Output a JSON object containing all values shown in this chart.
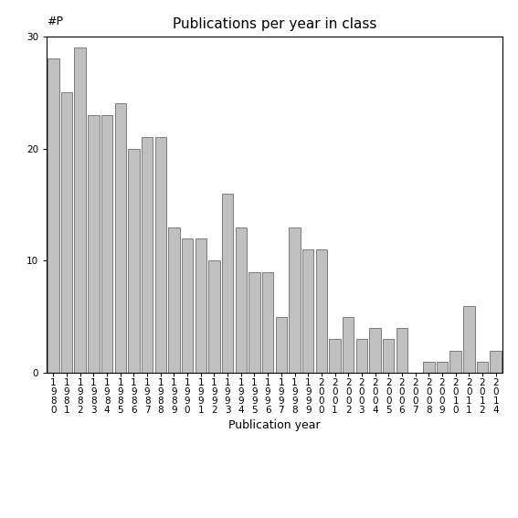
{
  "title": "Publications per year in class",
  "xlabel": "Publication year",
  "ylabel": "#P",
  "bar_color": "#c0c0c0",
  "bar_edgecolor": "#555555",
  "years": [
    "1980",
    "1981",
    "1982",
    "1983",
    "1984",
    "1985",
    "1986",
    "1987",
    "1988",
    "1989",
    "1990",
    "1991",
    "1992",
    "1993",
    "1994",
    "1995",
    "1996",
    "1997",
    "1998",
    "1999",
    "2000",
    "2001",
    "2002",
    "2003",
    "2004",
    "2005",
    "2006",
    "2007",
    "2008",
    "2009",
    "2010",
    "2011",
    "2012",
    "2014"
  ],
  "values": [
    28,
    25,
    29,
    23,
    23,
    24,
    20,
    21,
    21,
    13,
    12,
    12,
    10,
    16,
    13,
    9,
    9,
    5,
    13,
    11,
    11,
    3,
    5,
    3,
    4,
    3,
    4,
    0,
    1,
    1,
    2,
    6,
    1,
    2
  ],
  "ylim": [
    0,
    30
  ],
  "yticks": [
    0,
    10,
    20,
    30
  ],
  "background_color": "#ffffff",
  "title_fontsize": 11,
  "label_fontsize": 9,
  "tick_fontsize": 7.5
}
